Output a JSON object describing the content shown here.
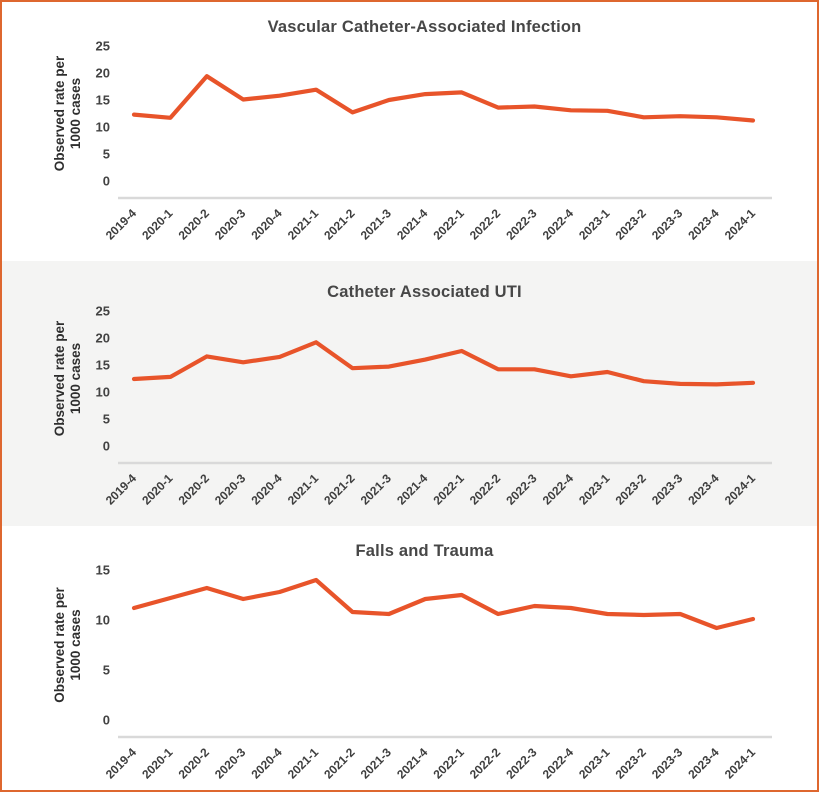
{
  "page": {
    "border_color": "#DE672F",
    "background": "#FFFFFF",
    "alt_panel_background": "#F4F4F3"
  },
  "colors": {
    "line": "#E8542A",
    "axis_line": "#D9D9D9",
    "tick_text": "#3E3E3E",
    "title_text": "#474747"
  },
  "y_axis_title_lines": [
    "Observed rate per",
    "1000 cases"
  ],
  "chart_data": [
    {
      "type": "line",
      "title": "Vascular Catheter-Associated Infection",
      "ylabel": "Observed rate per 1000 cases",
      "ylim": [
        0,
        25
      ],
      "yticks": [
        0,
        5,
        10,
        15,
        20,
        25
      ],
      "grid": false,
      "legend": "none",
      "categories": [
        "2019-4",
        "2020-1",
        "2020-2",
        "2020-3",
        "2020-4",
        "2021-1",
        "2021-2",
        "2021-3",
        "2021-4",
        "2022-1",
        "2022-2",
        "2022-3",
        "2022-4",
        "2023-1",
        "2023-2",
        "2023-3",
        "2023-4",
        "2024-1"
      ],
      "values": [
        12.3,
        11.7,
        19.4,
        15.1,
        15.8,
        16.9,
        12.7,
        15.0,
        16.1,
        16.4,
        13.6,
        13.8,
        13.1,
        13.0,
        11.8,
        12.0,
        11.8,
        11.2
      ]
    },
    {
      "type": "line",
      "title": "Catheter Associated UTI",
      "ylabel": "Observed rate per 1000 cases",
      "ylim": [
        0,
        25
      ],
      "yticks": [
        0,
        5,
        10,
        15,
        20,
        25
      ],
      "grid": false,
      "legend": "none",
      "categories": [
        "2019-4",
        "2020-1",
        "2020-2",
        "2020-3",
        "2020-4",
        "2021-1",
        "2021-2",
        "2021-3",
        "2021-4",
        "2022-1",
        "2022-2",
        "2022-3",
        "2022-4",
        "2023-1",
        "2023-2",
        "2023-3",
        "2023-4",
        "2024-1"
      ],
      "values": [
        12.4,
        12.8,
        16.6,
        15.5,
        16.5,
        19.2,
        14.4,
        14.7,
        16.0,
        17.6,
        14.2,
        14.2,
        12.9,
        13.7,
        12.0,
        11.5,
        11.4,
        11.7
      ]
    },
    {
      "type": "line",
      "title": "Falls and Trauma",
      "ylabel": "Observed rate per 1000 cases",
      "ylim": [
        0,
        15
      ],
      "yticks": [
        0,
        5,
        10,
        15
      ],
      "grid": false,
      "legend": "none",
      "categories": [
        "2019-4",
        "2020-1",
        "2020-2",
        "2020-3",
        "2020-4",
        "2021-1",
        "2021-2",
        "2021-3",
        "2021-4",
        "2022-1",
        "2022-2",
        "2022-3",
        "2022-4",
        "2023-1",
        "2023-2",
        "2023-3",
        "2023-4",
        "2024-1"
      ],
      "values": [
        11.2,
        12.2,
        13.2,
        12.1,
        12.8,
        14.0,
        10.8,
        10.6,
        12.1,
        12.5,
        10.6,
        11.4,
        11.2,
        10.6,
        10.5,
        10.6,
        9.2,
        10.1
      ]
    }
  ]
}
